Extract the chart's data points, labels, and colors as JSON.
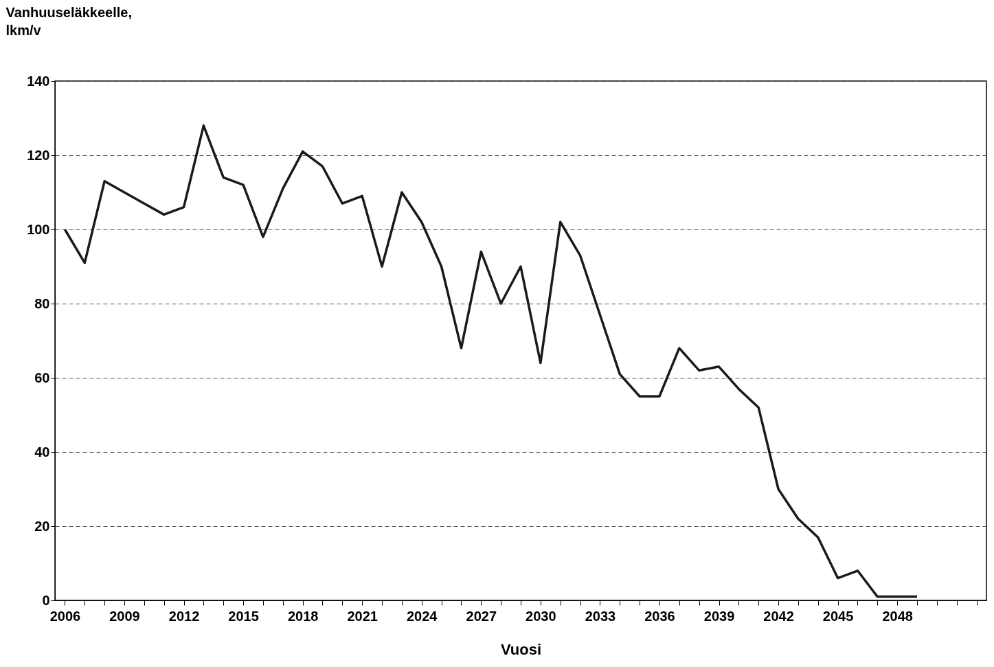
{
  "chart_data": {
    "type": "line",
    "xlabel": "Vuosi",
    "ylabel": "Vanhuuseläkkeelle,\n lkm/v",
    "x": [
      2006,
      2007,
      2008,
      2009,
      2010,
      2011,
      2012,
      2013,
      2014,
      2015,
      2016,
      2017,
      2018,
      2019,
      2020,
      2021,
      2022,
      2023,
      2024,
      2025,
      2026,
      2027,
      2028,
      2029,
      2030,
      2031,
      2032,
      2033,
      2034,
      2035,
      2036,
      2037,
      2038,
      2039,
      2040,
      2041,
      2042,
      2043,
      2044,
      2045,
      2046,
      2047,
      2048,
      2049
    ],
    "series": [
      {
        "color": "#1a1a1a",
        "values": [
          100,
          91,
          113,
          110,
          107,
          104,
          106,
          128,
          114,
          112,
          98,
          111,
          121,
          117,
          107,
          109,
          90,
          110,
          102,
          90,
          68,
          94,
          80,
          90,
          64,
          102,
          93,
          77,
          61,
          55,
          55,
          68,
          62,
          63,
          57,
          52,
          30,
          22,
          17,
          6,
          8,
          1,
          1,
          1
        ]
      }
    ],
    "xlim": [
      2005.5,
      2052.5
    ],
    "xticks": [
      2006,
      {
        "value": 2007,
        "label": null
      },
      {
        "value": 2008,
        "label": null
      },
      2009,
      {
        "value": 2010,
        "label": null
      },
      {
        "value": 2011,
        "label": null
      },
      2012,
      {
        "value": 2013,
        "label": null
      },
      {
        "value": 2014,
        "label": null
      },
      2015,
      {
        "value": 2016,
        "label": null
      },
      {
        "value": 2017,
        "label": null
      },
      2018,
      {
        "value": 2019,
        "label": null
      },
      {
        "value": 2020,
        "label": null
      },
      2021,
      {
        "value": 2022,
        "label": null
      },
      {
        "value": 2023,
        "label": null
      },
      2024,
      {
        "value": 2025,
        "label": null
      },
      {
        "value": 2026,
        "label": null
      },
      2027,
      {
        "value": 2028,
        "label": null
      },
      {
        "value": 2029,
        "label": null
      },
      2030,
      {
        "value": 2031,
        "label": null
      },
      {
        "value": 2032,
        "label": null
      },
      2033,
      {
        "value": 2034,
        "label": null
      },
      {
        "value": 2035,
        "label": null
      },
      2036,
      {
        "value": 2037,
        "label": null
      },
      {
        "value": 2038,
        "label": null
      },
      2039,
      {
        "value": 2040,
        "label": null
      },
      {
        "value": 2041,
        "label": null
      },
      2042,
      {
        "value": 2043,
        "label": null
      },
      {
        "value": 2044,
        "label": null
      },
      2045,
      {
        "value": 2046,
        "label": null
      },
      {
        "value": 2047,
        "label": null
      },
      2048,
      {
        "value": 2049,
        "label": null
      },
      {
        "value": 2050,
        "label": null
      },
      {
        "value": 2051,
        "label": null
      },
      {
        "value": 2052,
        "label": null
      }
    ],
    "ylim": [
      0,
      140
    ],
    "yticks": [
      0,
      20,
      40,
      60,
      80,
      100,
      120,
      140
    ],
    "grid": "y",
    "line_style": "solid",
    "marker": "none"
  }
}
